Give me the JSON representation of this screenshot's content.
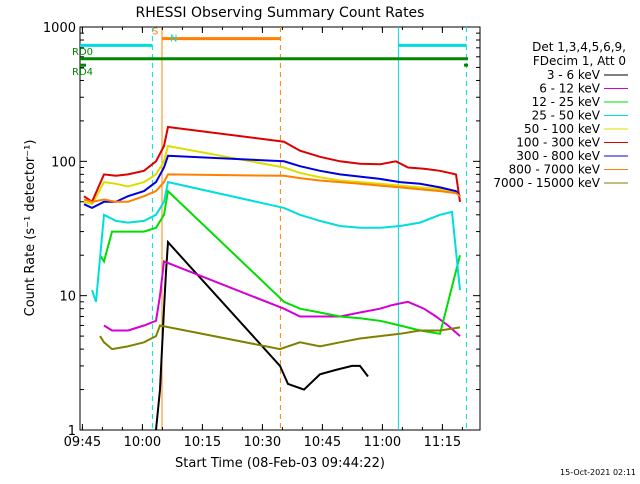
{
  "chart_data": {
    "type": "line",
    "title": "RHESSI Observing Summary Count Rates",
    "xlabel": "Start Time (08-Feb-03 09:44:22)",
    "ylabel": "Count Rate (s⁻¹ detector⁻¹)",
    "yscale": "log",
    "ylim": [
      1,
      1000
    ],
    "xlim_minutes": [
      0,
      100
    ],
    "x_ticks": [
      {
        "t": 0.6,
        "label": "09:45"
      },
      {
        "t": 15.6,
        "label": "10:00"
      },
      {
        "t": 30.6,
        "label": "10:15"
      },
      {
        "t": 45.6,
        "label": "10:30"
      },
      {
        "t": 60.6,
        "label": "10:45"
      },
      {
        "t": 75.6,
        "label": "11:00"
      },
      {
        "t": 90.6,
        "label": "11:15"
      }
    ],
    "y_ticks": [
      {
        "v": 1,
        "label": "1"
      },
      {
        "v": 10,
        "label": "10"
      },
      {
        "v": 100,
        "label": "100"
      },
      {
        "v": 1000,
        "label": "1000"
      }
    ],
    "legend_header": [
      "Det 1,3,4,5,6,9,",
      "FDecim 1, Att 0"
    ],
    "series": [
      {
        "name": "3 - 6 keV",
        "color": "#000000",
        "points": [
          [
            19,
            1
          ],
          [
            20,
            2
          ],
          [
            21,
            8
          ],
          [
            21.5,
            15
          ],
          [
            22,
            25
          ],
          [
            50,
            3
          ],
          [
            52,
            2.2
          ],
          [
            56,
            2
          ],
          [
            60,
            2.6
          ],
          [
            64,
            2.8
          ],
          [
            68,
            3
          ],
          [
            70,
            3
          ],
          [
            72,
            2.5
          ]
        ]
      },
      {
        "name": "6 - 12 keV",
        "color": "#d400d4",
        "points": [
          [
            6,
            6
          ],
          [
            8,
            5.5
          ],
          [
            12,
            5.5
          ],
          [
            16,
            6
          ],
          [
            19,
            6.5
          ],
          [
            20,
            10
          ],
          [
            21,
            18
          ],
          [
            51,
            8
          ],
          [
            55,
            7
          ],
          [
            60,
            7
          ],
          [
            65,
            7
          ],
          [
            70,
            7.5
          ],
          [
            75,
            8
          ],
          [
            78,
            8.5
          ],
          [
            82,
            9
          ],
          [
            86,
            8
          ],
          [
            89,
            7
          ],
          [
            92,
            6
          ],
          [
            95,
            5
          ]
        ]
      },
      {
        "name": "12 - 25 keV",
        "color": "#00dd00",
        "points": [
          [
            5,
            20
          ],
          [
            6,
            18
          ],
          [
            8,
            30
          ],
          [
            12,
            30
          ],
          [
            16,
            30
          ],
          [
            19,
            32
          ],
          [
            21,
            40
          ],
          [
            22,
            60
          ],
          [
            51,
            9
          ],
          [
            55,
            8
          ],
          [
            60,
            7.5
          ],
          [
            65,
            7
          ],
          [
            70,
            6.8
          ],
          [
            75,
            6.5
          ],
          [
            80,
            6
          ],
          [
            85,
            5.5
          ],
          [
            90,
            5.2
          ],
          [
            95,
            20
          ]
        ]
      },
      {
        "name": "25 - 50 keV",
        "color": "#00dddd",
        "points": [
          [
            3,
            11
          ],
          [
            4,
            9
          ],
          [
            6,
            40
          ],
          [
            9,
            36
          ],
          [
            12,
            35
          ],
          [
            16,
            36
          ],
          [
            19,
            40
          ],
          [
            21,
            50
          ],
          [
            22,
            70
          ],
          [
            51,
            45
          ],
          [
            55,
            40
          ],
          [
            60,
            36
          ],
          [
            65,
            33
          ],
          [
            70,
            32
          ],
          [
            75,
            32
          ],
          [
            80,
            33
          ],
          [
            85,
            35
          ],
          [
            90,
            40
          ],
          [
            93,
            42
          ],
          [
            95,
            11
          ]
        ]
      },
      {
        "name": "50 - 100 keV",
        "color": "#dddd00",
        "points": [
          [
            1,
            50
          ],
          [
            3,
            48
          ],
          [
            6,
            70
          ],
          [
            9,
            68
          ],
          [
            12,
            65
          ],
          [
            16,
            70
          ],
          [
            19,
            80
          ],
          [
            21,
            100
          ],
          [
            22,
            130
          ],
          [
            51,
            90
          ],
          [
            55,
            82
          ],
          [
            60,
            76
          ],
          [
            65,
            72
          ],
          [
            70,
            70
          ],
          [
            75,
            68
          ],
          [
            80,
            66
          ],
          [
            85,
            64
          ],
          [
            90,
            62
          ],
          [
            94,
            60
          ],
          [
            95,
            55
          ]
        ]
      },
      {
        "name": "100 - 300 keV",
        "color": "#dd0000",
        "points": [
          [
            1,
            55
          ],
          [
            3,
            50
          ],
          [
            6,
            80
          ],
          [
            9,
            78
          ],
          [
            12,
            80
          ],
          [
            16,
            85
          ],
          [
            19,
            100
          ],
          [
            21,
            130
          ],
          [
            22,
            180
          ],
          [
            51,
            140
          ],
          [
            55,
            120
          ],
          [
            60,
            108
          ],
          [
            65,
            100
          ],
          [
            70,
            96
          ],
          [
            75,
            95
          ],
          [
            79,
            100
          ],
          [
            82,
            90
          ],
          [
            86,
            88
          ],
          [
            90,
            85
          ],
          [
            94,
            80
          ],
          [
            95,
            50
          ]
        ]
      },
      {
        "name": "300 - 800 keV",
        "color": "#0000dd",
        "points": [
          [
            1,
            48
          ],
          [
            3,
            45
          ],
          [
            6,
            50
          ],
          [
            9,
            50
          ],
          [
            12,
            55
          ],
          [
            16,
            60
          ],
          [
            19,
            70
          ],
          [
            21,
            90
          ],
          [
            22,
            110
          ],
          [
            51,
            100
          ],
          [
            55,
            92
          ],
          [
            60,
            85
          ],
          [
            65,
            80
          ],
          [
            70,
            77
          ],
          [
            75,
            74
          ],
          [
            80,
            70
          ],
          [
            85,
            68
          ],
          [
            90,
            64
          ],
          [
            94,
            60
          ],
          [
            95,
            55
          ]
        ]
      },
      {
        "name": "800 - 7000 keV",
        "color": "#ff8000",
        "points": [
          [
            1,
            52
          ],
          [
            3,
            50
          ],
          [
            6,
            52
          ],
          [
            9,
            50
          ],
          [
            12,
            50
          ],
          [
            16,
            55
          ],
          [
            19,
            60
          ],
          [
            21,
            70
          ],
          [
            22,
            80
          ],
          [
            51,
            78
          ],
          [
            55,
            75
          ],
          [
            60,
            72
          ],
          [
            65,
            70
          ],
          [
            70,
            68
          ],
          [
            75,
            66
          ],
          [
            80,
            64
          ],
          [
            85,
            62
          ],
          [
            90,
            60
          ],
          [
            94,
            58
          ],
          [
            95,
            55
          ]
        ]
      },
      {
        "name": "7000 - 15000 keV",
        "color": "#808000",
        "points": [
          [
            5,
            5
          ],
          [
            6,
            4.5
          ],
          [
            8,
            4
          ],
          [
            12,
            4.2
          ],
          [
            16,
            4.5
          ],
          [
            19,
            5
          ],
          [
            20,
            6
          ],
          [
            50,
            4
          ],
          [
            55,
            4.5
          ],
          [
            60,
            4.2
          ],
          [
            65,
            4.5
          ],
          [
            70,
            4.8
          ],
          [
            75,
            5
          ],
          [
            80,
            5.2
          ],
          [
            85,
            5.5
          ],
          [
            90,
            5.5
          ],
          [
            95,
            5.8
          ]
        ]
      }
    ],
    "vertical_markers": [
      {
        "t": 18.1,
        "color": "#00dddd",
        "style": "dashed"
      },
      {
        "t": 20.5,
        "color": "#ff8000",
        "style": "solid"
      },
      {
        "t": 50.1,
        "color": "#ff8000",
        "style": "dashed"
      },
      {
        "t": 79.6,
        "color": "#00dddd",
        "style": "solid"
      },
      {
        "t": 96.6,
        "color": "#00dddd",
        "style": "dashed"
      }
    ],
    "top_bars": [
      {
        "label": "",
        "color": "#00dddd",
        "y": 730,
        "segments": [
          [
            0,
            18.1
          ],
          [
            79.6,
            96.6
          ]
        ]
      },
      {
        "label": "S",
        "color": "#ff8000",
        "y": 820,
        "segments": [
          [
            20.5,
            50.1
          ]
        ]
      },
      {
        "label": "N",
        "color": "#00dddd",
        "y": 730,
        "label_only_t": 20.5
      },
      {
        "label": "RD0",
        "color": "#008800",
        "y": 580,
        "segments": [
          [
            0,
            97
          ]
        ]
      },
      {
        "label": "RD4",
        "color": "#008800",
        "y": 520,
        "segments": [
          [
            0,
            1.5
          ],
          [
            96,
            97
          ]
        ]
      }
    ],
    "grid": false,
    "legend_position": "right"
  },
  "footer": {
    "timestamp": "15-Oct-2021 02:11"
  }
}
